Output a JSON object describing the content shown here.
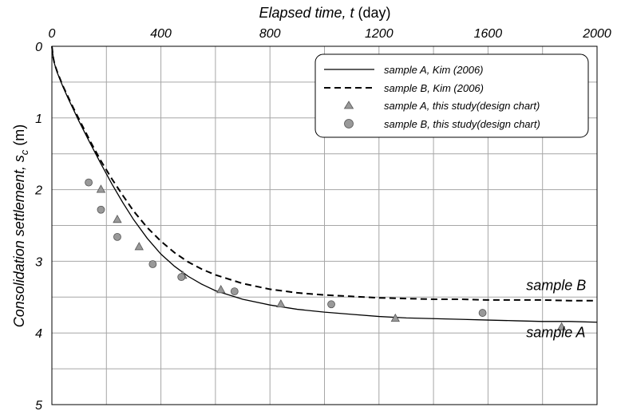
{
  "chart_data": {
    "type": "line",
    "xlabel": {
      "main": "Elapsed time, ",
      "var": "t",
      "unit": " (day)"
    },
    "ylabel": {
      "main": "Consolidation settlement, ",
      "var": "s",
      "sub": "c",
      "unit": " (m)"
    },
    "xlim": [
      0,
      2000
    ],
    "ylim": [
      0,
      5
    ],
    "x_axis_position": "top",
    "y_inverted": true,
    "xticks": [
      0,
      400,
      800,
      1200,
      1600,
      2000
    ],
    "xtick_labels": [
      "0",
      "400",
      "800",
      "1200",
      "1600",
      "2000"
    ],
    "yticks": [
      0,
      1,
      2,
      3,
      4,
      5
    ],
    "ytick_labels": [
      "0",
      "1",
      "2",
      "3",
      "4",
      "5"
    ],
    "grid": true,
    "legend_position": "top-right",
    "series": [
      {
        "name": "sample A, Kim (2006)",
        "kind": "line",
        "style": "solid",
        "color": "#000000",
        "x": [
          0,
          5,
          10,
          20,
          40,
          60,
          80,
          100,
          140,
          180,
          220,
          260,
          300,
          350,
          400,
          450,
          500,
          550,
          600,
          700,
          800,
          900,
          1000,
          1100,
          1200,
          1300,
          1400,
          1500,
          1600,
          1700,
          1800,
          1900,
          2000
        ],
        "y": [
          0,
          0.16,
          0.25,
          0.37,
          0.56,
          0.73,
          0.89,
          1.05,
          1.35,
          1.64,
          1.92,
          2.18,
          2.42,
          2.68,
          2.9,
          3.07,
          3.21,
          3.32,
          3.41,
          3.53,
          3.61,
          3.67,
          3.71,
          3.74,
          3.77,
          3.79,
          3.8,
          3.81,
          3.82,
          3.83,
          3.84,
          3.84,
          3.85
        ]
      },
      {
        "name": "sample B, Kim (2006)",
        "kind": "line",
        "style": "dashed",
        "color": "#000000",
        "x": [
          0,
          5,
          10,
          20,
          40,
          60,
          80,
          100,
          140,
          180,
          220,
          260,
          300,
          350,
          400,
          450,
          500,
          550,
          600,
          700,
          800,
          900,
          1000,
          1100,
          1200,
          1300,
          1400,
          1500,
          1600,
          1700,
          1800,
          1900,
          2000
        ],
        "y": [
          0,
          0.16,
          0.25,
          0.36,
          0.55,
          0.71,
          0.87,
          1.02,
          1.32,
          1.6,
          1.85,
          2.08,
          2.3,
          2.53,
          2.72,
          2.88,
          3.01,
          3.11,
          3.19,
          3.31,
          3.39,
          3.44,
          3.47,
          3.49,
          3.51,
          3.52,
          3.53,
          3.53,
          3.54,
          3.54,
          3.54,
          3.55,
          3.55
        ]
      },
      {
        "name": "sample A, this study(design chart)",
        "kind": "marker",
        "marker": "triangle",
        "color": "#999999",
        "x": [
          180,
          240,
          320,
          480,
          620,
          840,
          1260,
          1870
        ],
        "y": [
          2.0,
          2.42,
          2.8,
          3.2,
          3.4,
          3.6,
          3.8,
          3.92
        ]
      },
      {
        "name": "sample B, this study(design chart)",
        "kind": "marker",
        "marker": "circle",
        "color": "#999999",
        "x": [
          135,
          180,
          240,
          370,
          475,
          670,
          1025,
          1580
        ],
        "y": [
          1.9,
          2.28,
          2.66,
          3.04,
          3.22,
          3.42,
          3.6,
          3.72
        ]
      }
    ],
    "annotations": [
      {
        "text": "sample B",
        "x": 1740,
        "y": 3.4
      },
      {
        "text": "sample A",
        "x": 1740,
        "y": 4.06
      }
    ]
  }
}
